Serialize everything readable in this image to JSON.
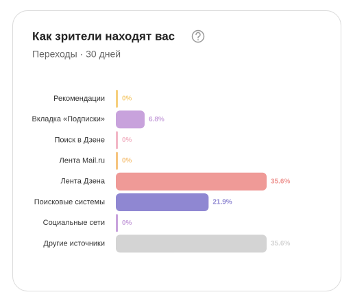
{
  "chart_data": {
    "type": "bar",
    "orientation": "horizontal",
    "title": "Как зрители находят вас",
    "subtitle": "Переходы · 30 дней",
    "categories": [
      "Рекомендации",
      "Вкладка «Подписки»",
      "Поиск в Дзене",
      "Лента Mail.ru",
      "Лента Дзена",
      "Поисковые системы",
      "Социальные сети",
      "Другие источники"
    ],
    "values": [
      0,
      6.8,
      0,
      0,
      35.6,
      21.9,
      0,
      35.6
    ],
    "value_labels": [
      "0%",
      "6.8%",
      "0%",
      "0%",
      "35.6%",
      "21.9%",
      "0%",
      "35.6%"
    ],
    "colors": [
      "#f6cf7c",
      "#c8a2dc",
      "#f2b6c6",
      "#f6c47e",
      "#ef9a97",
      "#8f87d2",
      "#c8a2dc",
      "#d4d4d4"
    ]
  }
}
